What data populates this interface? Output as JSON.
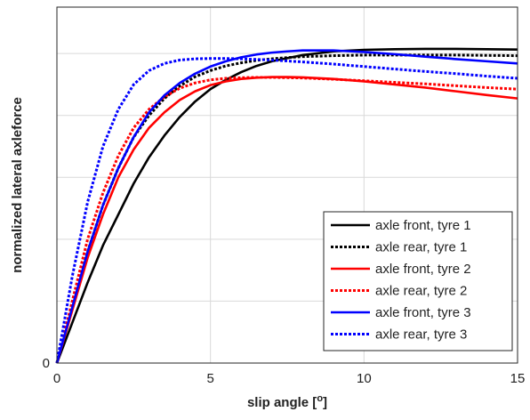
{
  "chart_data": {
    "type": "line",
    "title": "",
    "xlabel": "slip angle [",
    "xlabel_superscript": "o",
    "xlabel_suffix": "]",
    "ylabel": "normalized lateral axleforce",
    "xlim": [
      0,
      15
    ],
    "ylim": [
      0,
      1.15
    ],
    "x_ticks": [
      0,
      5,
      10,
      15
    ],
    "y_ticks": [
      0,
      0.2,
      0.4,
      0.6,
      0.8,
      1.0
    ],
    "y_tick_labels": [
      "0"
    ],
    "grid": true,
    "legend_position": "bottom-right",
    "series": [
      {
        "name": "axle front, tyre 1",
        "color": "#000000",
        "dash": "solid",
        "x": [
          0,
          0.5,
          1,
          1.5,
          2,
          2.5,
          3,
          3.5,
          4,
          4.5,
          5,
          5.5,
          6,
          6.5,
          7,
          7.5,
          8,
          9,
          10,
          11,
          12,
          13,
          14,
          15
        ],
        "y": [
          0,
          0.13,
          0.26,
          0.38,
          0.48,
          0.58,
          0.665,
          0.735,
          0.795,
          0.845,
          0.885,
          0.915,
          0.94,
          0.96,
          0.975,
          0.985,
          0.995,
          1.007,
          1.012,
          1.014,
          1.015,
          1.015,
          1.014,
          1.013
        ]
      },
      {
        "name": "axle rear, tyre 1",
        "color": "#000000",
        "dash": "dotted",
        "x": [
          0,
          0.5,
          1,
          1.5,
          2,
          2.5,
          3,
          3.5,
          4,
          4.5,
          5,
          5.5,
          6,
          6.5,
          7,
          7.5,
          8,
          9,
          10,
          11,
          12,
          13,
          14,
          15
        ],
        "y": [
          0,
          0.18,
          0.36,
          0.51,
          0.63,
          0.73,
          0.8,
          0.855,
          0.895,
          0.925,
          0.945,
          0.96,
          0.97,
          0.978,
          0.983,
          0.987,
          0.99,
          0.993,
          0.995,
          0.995,
          0.995,
          0.995,
          0.994,
          0.993
        ]
      },
      {
        "name": "axle front, tyre 2",
        "color": "#ff0000",
        "dash": "solid",
        "x": [
          0,
          0.5,
          1,
          1.5,
          2,
          2.5,
          3,
          3.5,
          4,
          4.5,
          5,
          5.5,
          6,
          6.5,
          7,
          7.5,
          8,
          9,
          10,
          11,
          12,
          13,
          14,
          15
        ],
        "y": [
          0,
          0.17,
          0.34,
          0.48,
          0.6,
          0.69,
          0.76,
          0.81,
          0.85,
          0.878,
          0.898,
          0.91,
          0.918,
          0.922,
          0.924,
          0.924,
          0.923,
          0.918,
          0.91,
          0.9,
          0.89,
          0.878,
          0.866,
          0.855
        ]
      },
      {
        "name": "axle rear, tyre 2",
        "color": "#ff0000",
        "dash": "dotted",
        "x": [
          0,
          0.5,
          1,
          1.5,
          2,
          2.5,
          3,
          3.5,
          4,
          4.5,
          5,
          5.5,
          6,
          6.5,
          7,
          7.5,
          8,
          9,
          10,
          11,
          12,
          13,
          14,
          15
        ],
        "y": [
          0,
          0.2,
          0.4,
          0.55,
          0.67,
          0.76,
          0.82,
          0.86,
          0.888,
          0.905,
          0.915,
          0.92,
          0.922,
          0.923,
          0.923,
          0.922,
          0.921,
          0.917,
          0.912,
          0.907,
          0.902,
          0.896,
          0.89,
          0.885
        ]
      },
      {
        "name": "axle front, tyre 3",
        "color": "#0000ff",
        "dash": "solid",
        "x": [
          0,
          0.5,
          1,
          1.5,
          2,
          2.5,
          3,
          3.5,
          4,
          4.5,
          5,
          5.5,
          6,
          6.5,
          7,
          7.5,
          8,
          9,
          10,
          11,
          12,
          13,
          14,
          15
        ],
        "y": [
          0,
          0.18,
          0.36,
          0.51,
          0.63,
          0.73,
          0.81,
          0.865,
          0.905,
          0.935,
          0.958,
          0.975,
          0.988,
          0.997,
          1.003,
          1.007,
          1.01,
          1.01,
          1.005,
          0.998,
          0.99,
          0.982,
          0.975,
          0.968
        ]
      },
      {
        "name": "axle rear, tyre 3",
        "color": "#0000ff",
        "dash": "dotted",
        "x": [
          0,
          0.5,
          1,
          1.5,
          2,
          2.5,
          3,
          3.5,
          4,
          4.5,
          5,
          5.5,
          6,
          6.5,
          7,
          7.5,
          8,
          9,
          10,
          11,
          12,
          13,
          14,
          15
        ],
        "y": [
          0,
          0.28,
          0.52,
          0.7,
          0.82,
          0.9,
          0.945,
          0.968,
          0.979,
          0.983,
          0.984,
          0.984,
          0.983,
          0.981,
          0.979,
          0.976,
          0.973,
          0.966,
          0.958,
          0.95,
          0.942,
          0.935,
          0.927,
          0.92
        ]
      }
    ]
  }
}
